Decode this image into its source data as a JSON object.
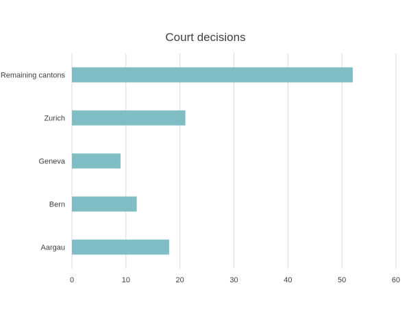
{
  "chart_data": {
    "type": "bar",
    "orientation": "horizontal",
    "title": "Court decisions",
    "categories": [
      "Remaining cantons",
      "Zurich",
      "Geneva",
      "Bern",
      "Aargau"
    ],
    "values": [
      52,
      21,
      9,
      12,
      18
    ],
    "xlim": [
      0,
      60
    ],
    "xticks": [
      0,
      10,
      20,
      30,
      40,
      50,
      60
    ],
    "grid": "vertical",
    "legend": "none",
    "bar_color": "#7fbec4"
  }
}
